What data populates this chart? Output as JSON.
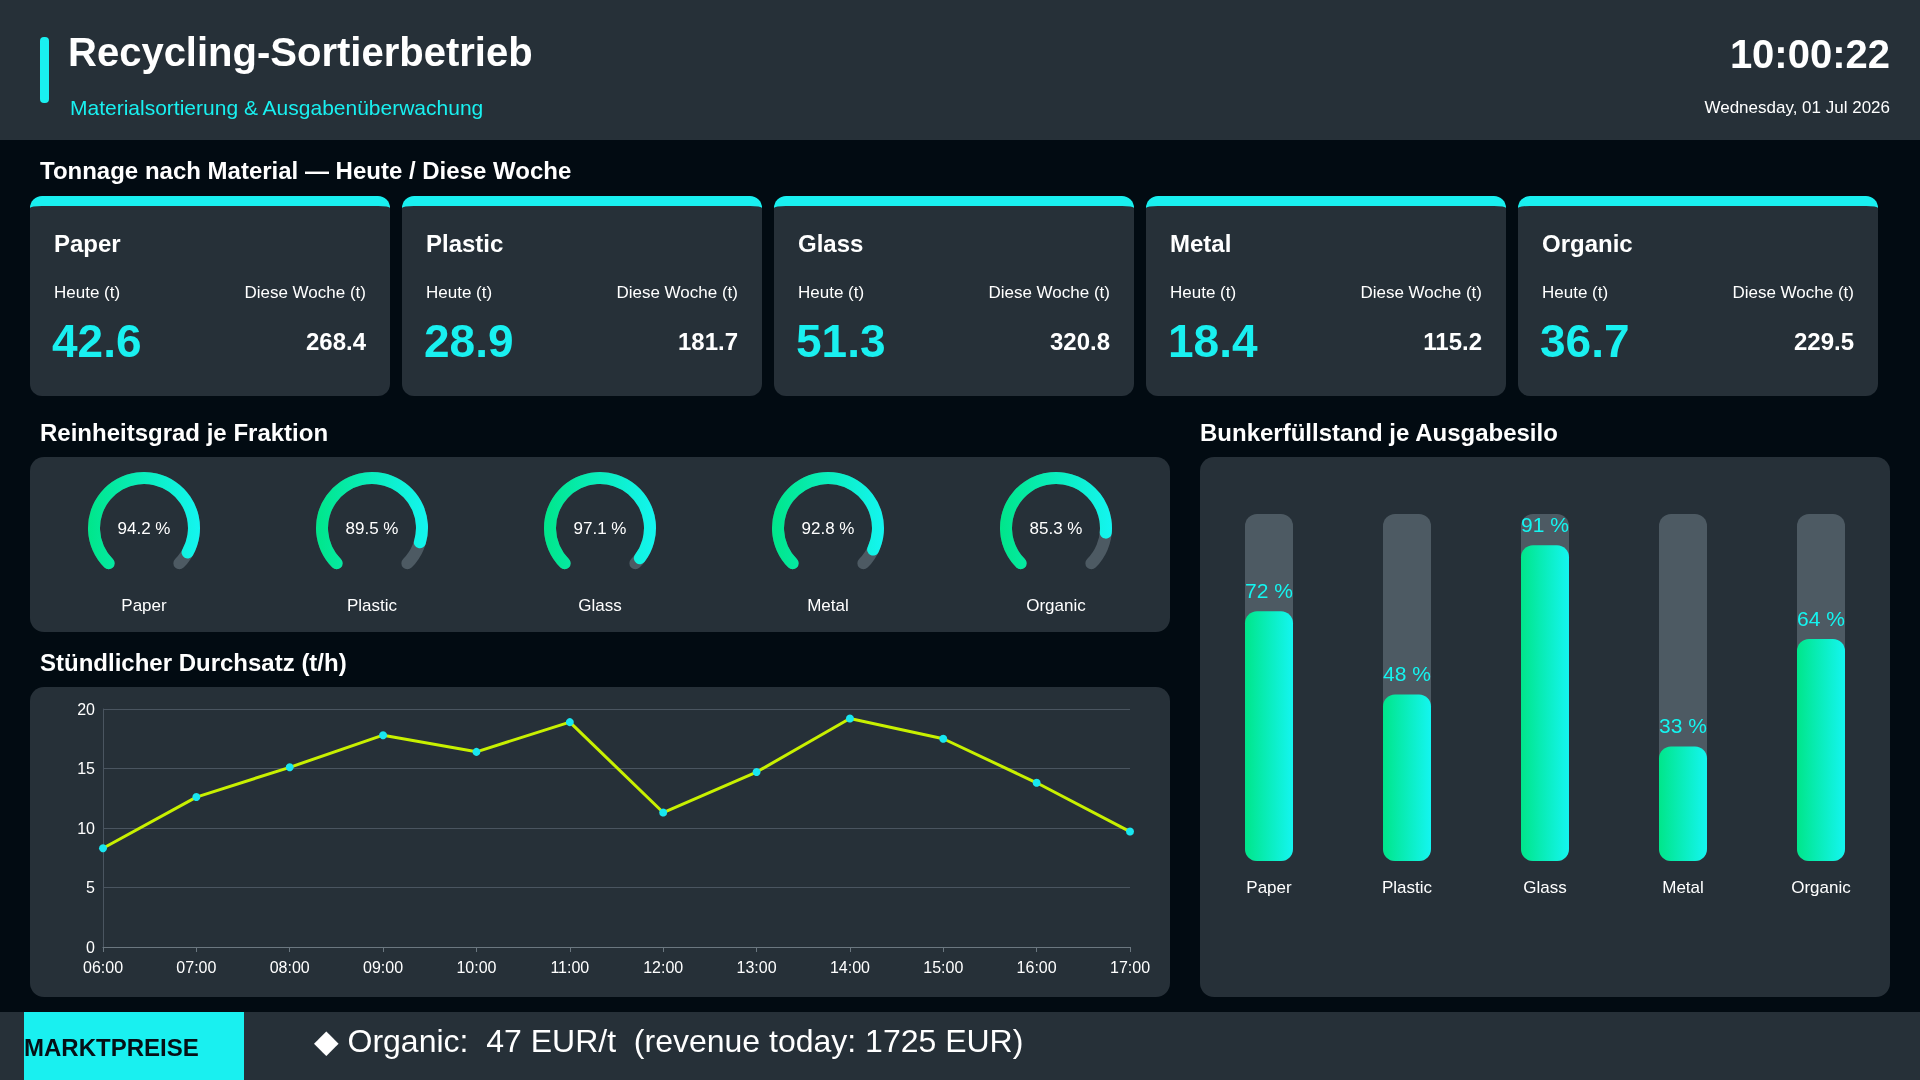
{
  "chart_data": [
    {
      "type": "other",
      "title": "Recycling-Sortierbetrieb",
      "subtitle": "Materialsortierung & Ausgabenüberwachung",
      "annotations": [
        "10:00:22",
        "Wednesday, 01 Jul 2026"
      ]
    },
    {
      "type": "other",
      "title": "Tonnage nach Material — Heute / Diese Woche",
      "annotations": [
        "Paper",
        "Heute (t)",
        "Diese Woche (t)",
        "42.6",
        "268.4",
        "Plastic",
        "Heute (t)",
        "Diese Woche (t)",
        "28.9",
        "181.7",
        "Glass",
        "Heute (t)",
        "Diese Woche (t)",
        "51.3",
        "320.8",
        "Metal",
        "Heute (t)",
        "Diese Woche (t)",
        "18.4",
        "115.2",
        "Organic",
        "Heute (t)",
        "Diese Woche (t)",
        "36.7",
        "229.5"
      ]
    },
    {
      "type": "other",
      "title": "Reinheitsgrad je Fraktion",
      "categories": [
        "Paper",
        "Plastic",
        "Glass",
        "Metal",
        "Organic"
      ],
      "values": [
        94.2,
        89.5,
        97.1,
        92.8,
        85.3
      ],
      "value_labels": [
        "94.2 %",
        "89.5 %",
        "97.1 %",
        "92.8 %",
        "85.3 %"
      ]
    },
    {
      "type": "line",
      "title": "Stündlicher Durchsatz (t/h)",
      "categories": [
        "06:00",
        "07:00",
        "08:00",
        "09:00",
        "10:00",
        "11:00",
        "12:00",
        "13:00",
        "14:00",
        "15:00",
        "16:00",
        "17:00"
      ],
      "series": [
        {
          "color": "#c8f000",
          "values": [
            8.3,
            12.6,
            15.1,
            17.8,
            16.4,
            18.9,
            11.3,
            14.7,
            19.2,
            17.5,
            13.8,
            9.7
          ]
        }
      ],
      "ylim": [
        0,
        20
      ],
      "yticks": [
        0,
        5,
        10,
        15,
        20
      ],
      "grid": "y",
      "marker": "circle",
      "line_style": "solid"
    },
    {
      "type": "bar",
      "title": "Bunkerfüllstand je Ausgabesilo",
      "categories": [
        "Paper",
        "Plastic",
        "Glass",
        "Metal",
        "Organic"
      ],
      "values": [
        72,
        48,
        91,
        33,
        64
      ],
      "value_labels": [
        "72 %",
        "48 %",
        "91 %",
        "33 %",
        "64 %"
      ],
      "color": "#14f5f0",
      "ylim": [
        0,
        100
      ],
      "tick_labels": "x"
    },
    {
      "type": "other",
      "title": "MARKTPREISE",
      "annotations": [
        "◆ Organic:  47 EUR/t  (revenue today: 1725 EUR)"
      ]
    }
  ]
}
